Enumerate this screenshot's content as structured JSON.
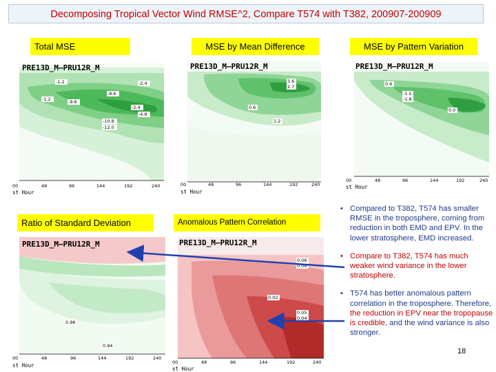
{
  "title": "Decomposing Tropical Vector Wind RMSE^2,   Compare T574 with T382,  200907-200909",
  "labels": {
    "total_mse": "Total  MSE",
    "mean_diff": "MSE by Mean Difference",
    "pattern_var": "MSE by Pattern Variation",
    "ratio_std": "Ratio of Standard Deviation",
    "anom_corr": "Anomalous Pattern Correlation"
  },
  "panels": {
    "p1": {
      "header": "PRE13D_M–PRU12R_M",
      "xaxis": "st Hour",
      "ticks": [
        "00",
        "48",
        "96",
        "144",
        "192",
        "240"
      ],
      "contours": [
        "-1.2",
        "-2.4",
        "-8.6",
        "-1.2",
        "-9.6",
        "-2.4",
        "-4.8",
        "-10.8",
        "-12.0"
      ]
    },
    "p2": {
      "header": "PRE13D_M–PRU12R_M",
      "xaxis": "st Hour",
      "ticks": [
        "00",
        "48",
        "96",
        "144",
        "192",
        "240"
      ],
      "contours": [
        "3.6",
        "2.7",
        "0.6",
        "1.2"
      ]
    },
    "p3": {
      "header": "PRE13D_M–PRU12R_M",
      "xaxis": "st Hour",
      "ticks": [
        "00",
        "48",
        "96",
        "144",
        "192",
        "240"
      ],
      "contours": [
        "0.6",
        "-1.5",
        "-1.8",
        "0.0"
      ]
    },
    "p4": {
      "header": "PRE13D_M–PRU12R_M",
      "xaxis": "st Hour",
      "ticks": [
        "00",
        "48",
        "96",
        "144",
        "192",
        "240"
      ],
      "contours": [
        "0.96",
        "0.94"
      ]
    },
    "p5": {
      "header": "PRE13D_M–PRU12R_M",
      "xaxis": "st Hour",
      "ticks": [
        "00",
        "48",
        "96",
        "144",
        "192",
        "240"
      ],
      "contours": [
        "0.06",
        "0.04",
        "0.02",
        "0.05",
        "0.04"
      ]
    }
  },
  "bullets": {
    "b1": "Compared to T382, T574 has smaller RMSE in the troposphere, coming from reduction in both EMD and EPV.  In the lower stratosphere, EMD increased.",
    "b2": "Compare to T382, T574 has much weaker wind variance in the lower stratosphere.",
    "b3_a": "T574 has better anomalous pattern correlation in the troposphere.  Therefore, ",
    "b3_b": "the reduction in EPV near the tropopause is credible",
    "b3_c": ", and the wind variance is also stronger."
  },
  "bullet_char": "•",
  "page_number": "18",
  "colors": {
    "title_red": "#c00000",
    "label_yellow": "#ffff00",
    "arrow_blue": "#2040b0",
    "green_dark": "#1f9e3a",
    "red_dark": "#b22222"
  }
}
